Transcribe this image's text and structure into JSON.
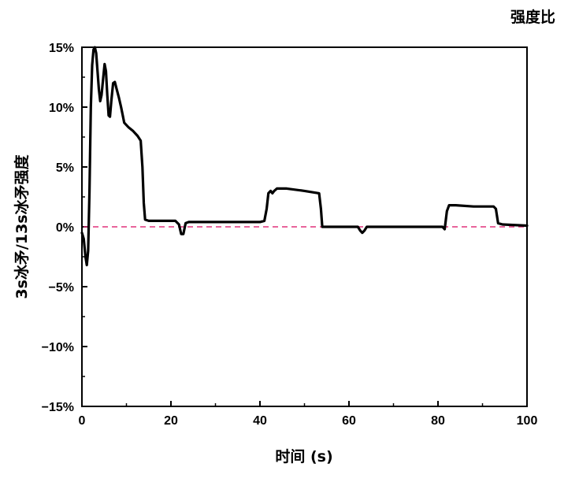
{
  "chart_data": {
    "type": "line",
    "title": "强度比",
    "xlabel": "时间 (s)",
    "ylabel": "3s冰矛/13s冰矛强度",
    "xlim": [
      0,
      100
    ],
    "ylim": [
      -15,
      15
    ],
    "x_ticks": [
      0,
      20,
      40,
      60,
      80,
      100
    ],
    "x_tick_labels": [
      "0",
      "20",
      "40",
      "60",
      "80",
      "100"
    ],
    "y_ticks": [
      15,
      10,
      5,
      0,
      -5,
      -10,
      -15
    ],
    "y_tick_labels": [
      "15%",
      "10%",
      "5%",
      "0%",
      "−5%",
      "−10%",
      "−15%"
    ],
    "grid": false,
    "reference_line": {
      "y": 0,
      "color": "#e0307a",
      "style": "dashed"
    },
    "series": [
      {
        "color": "#000000",
        "points": [
          [
            0.0,
            -0.5
          ],
          [
            0.4,
            -1.0
          ],
          [
            0.8,
            -2.5
          ],
          [
            1.1,
            -3.2
          ],
          [
            1.4,
            -2.0
          ],
          [
            1.7,
            3.0
          ],
          [
            2.0,
            10.0
          ],
          [
            2.3,
            13.5
          ],
          [
            2.6,
            14.8
          ],
          [
            2.9,
            15.0
          ],
          [
            3.2,
            14.5
          ],
          [
            3.5,
            13.0
          ],
          [
            3.8,
            11.5
          ],
          [
            4.1,
            10.5
          ],
          [
            4.4,
            11.0
          ],
          [
            4.8,
            12.5
          ],
          [
            5.1,
            13.6
          ],
          [
            5.4,
            13.0
          ],
          [
            5.7,
            11.0
          ],
          [
            6.0,
            9.3
          ],
          [
            6.3,
            9.2
          ],
          [
            6.6,
            10.5
          ],
          [
            7.0,
            12.0
          ],
          [
            7.4,
            12.1
          ],
          [
            7.8,
            11.5
          ],
          [
            8.3,
            10.8
          ],
          [
            8.8,
            10.0
          ],
          [
            9.5,
            8.7
          ],
          [
            10.5,
            8.3
          ],
          [
            11.5,
            8.0
          ],
          [
            12.5,
            7.6
          ],
          [
            13.2,
            7.2
          ],
          [
            13.6,
            5.0
          ],
          [
            13.9,
            2.0
          ],
          [
            14.2,
            0.6
          ],
          [
            15.0,
            0.5
          ],
          [
            21.0,
            0.5
          ],
          [
            21.8,
            0.2
          ],
          [
            22.3,
            -0.6
          ],
          [
            22.8,
            -0.6
          ],
          [
            23.3,
            0.3
          ],
          [
            24.0,
            0.4
          ],
          [
            40.0,
            0.4
          ],
          [
            41.0,
            0.5
          ],
          [
            41.5,
            1.5
          ],
          [
            41.9,
            2.8
          ],
          [
            42.4,
            3.0
          ],
          [
            42.8,
            2.8
          ],
          [
            43.2,
            3.0
          ],
          [
            43.8,
            3.2
          ],
          [
            46.0,
            3.2
          ],
          [
            50.0,
            3.0
          ],
          [
            53.3,
            2.8
          ],
          [
            53.7,
            1.5
          ],
          [
            54.0,
            0.0
          ],
          [
            62.0,
            0.0
          ],
          [
            62.5,
            -0.3
          ],
          [
            63.0,
            -0.5
          ],
          [
            63.5,
            -0.3
          ],
          [
            64.0,
            0.0
          ],
          [
            81.0,
            0.0
          ],
          [
            81.5,
            -0.2
          ],
          [
            82.0,
            1.3
          ],
          [
            82.5,
            1.8
          ],
          [
            84.0,
            1.8
          ],
          [
            88.0,
            1.7
          ],
          [
            92.5,
            1.7
          ],
          [
            93.0,
            1.5
          ],
          [
            93.5,
            0.3
          ],
          [
            94.5,
            0.2
          ],
          [
            100.0,
            0.1
          ]
        ]
      }
    ]
  }
}
